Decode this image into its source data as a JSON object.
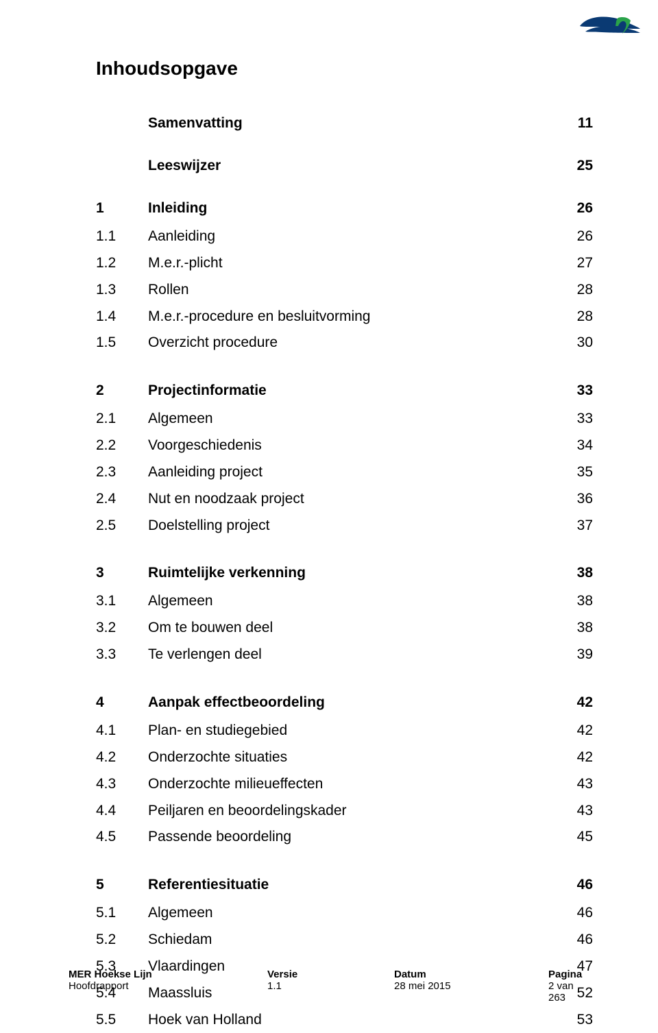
{
  "title": "Inhoudsopgave",
  "logo": {
    "name": "ret-logo",
    "colors": {
      "swoosh": "#0a3a73",
      "letter": "#2aa34a"
    }
  },
  "top_entries": [
    {
      "label": "Samenvatting",
      "page": "11"
    },
    {
      "label": "Leeswijzer",
      "page": "25"
    }
  ],
  "sections": [
    {
      "num": "1",
      "label": "Inleiding",
      "page": "26",
      "rows": [
        {
          "num": "1.1",
          "label": "Aanleiding",
          "page": "26"
        },
        {
          "num": "1.2",
          "label": "M.e.r.-plicht",
          "page": "27"
        },
        {
          "num": "1.3",
          "label": "Rollen",
          "page": "28"
        },
        {
          "num": "1.4",
          "label": "M.e.r.-procedure en besluitvorming",
          "page": "28"
        },
        {
          "num": "1.5",
          "label": "Overzicht procedure",
          "page": "30"
        }
      ]
    },
    {
      "num": "2",
      "label": "Projectinformatie",
      "page": "33",
      "rows": [
        {
          "num": "2.1",
          "label": "Algemeen",
          "page": "33"
        },
        {
          "num": "2.2",
          "label": "Voorgeschiedenis",
          "page": "34"
        },
        {
          "num": "2.3",
          "label": "Aanleiding project",
          "page": "35"
        },
        {
          "num": "2.4",
          "label": "Nut en noodzaak project",
          "page": "36"
        },
        {
          "num": "2.5",
          "label": "Doelstelling project",
          "page": "37"
        }
      ]
    },
    {
      "num": "3",
      "label": "Ruimtelijke verkenning",
      "page": "38",
      "rows": [
        {
          "num": "3.1",
          "label": "Algemeen",
          "page": "38"
        },
        {
          "num": "3.2",
          "label": "Om te bouwen deel",
          "page": "38"
        },
        {
          "num": "3.3",
          "label": "Te verlengen deel",
          "page": "39"
        }
      ]
    },
    {
      "num": "4",
      "label": "Aanpak effectbeoordeling",
      "page": "42",
      "rows": [
        {
          "num": "4.1",
          "label": "Plan- en studiegebied",
          "page": "42"
        },
        {
          "num": "4.2",
          "label": "Onderzochte situaties",
          "page": "42"
        },
        {
          "num": "4.3",
          "label": "Onderzochte milieueffecten",
          "page": "43"
        },
        {
          "num": "4.4",
          "label": "Peiljaren en beoordelingskader",
          "page": "43"
        },
        {
          "num": "4.5",
          "label": "Passende beoordeling",
          "page": "45"
        }
      ]
    },
    {
      "num": "5",
      "label": "Referentiesituatie",
      "page": "46",
      "rows": [
        {
          "num": "5.1",
          "label": "Algemeen",
          "page": "46"
        },
        {
          "num": "5.2",
          "label": "Schiedam",
          "page": "46"
        },
        {
          "num": "5.3",
          "label": "Vlaardingen",
          "page": "47"
        },
        {
          "num": "5.4",
          "label": "Maassluis",
          "page": "52"
        },
        {
          "num": "5.5",
          "label": "Hoek van Holland",
          "page": "53"
        }
      ]
    }
  ],
  "footer": {
    "headers": [
      "MER Hoekse Lijn",
      "Versie",
      "Datum",
      "Pagina"
    ],
    "values": [
      "Hoofdrapport",
      "1.1",
      "28 mei 2015",
      "2 van 263"
    ]
  }
}
